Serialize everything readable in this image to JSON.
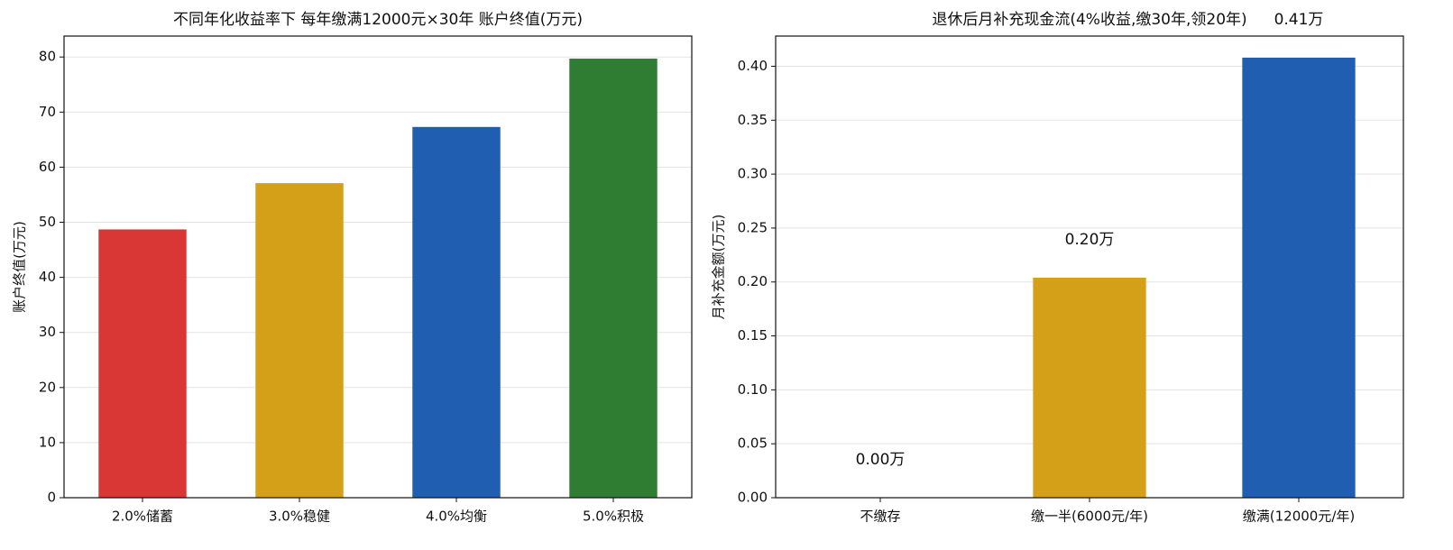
{
  "chart_data": [
    {
      "type": "bar",
      "title": "不同年化收益率下 每年缴满12000元×30年 账户终值(万元)",
      "ylabel": "账户终值(万元)",
      "categories": [
        "2.0%储蓄",
        "3.0%稳健",
        "4.0%均衡",
        "5.0%积极"
      ],
      "values": [
        48.7,
        57.1,
        67.3,
        79.7
      ],
      "colors": [
        "#d93636",
        "#d4a017",
        "#1f5eb0",
        "#2e7d32"
      ],
      "ylim": [
        0,
        83.8
      ],
      "yticks": [
        0,
        10,
        20,
        30,
        40,
        50,
        60,
        70,
        80
      ],
      "grid": true
    },
    {
      "type": "bar",
      "title": "退休后月补充现金流(4%收益,缴30年,领20年)",
      "ylabel": "月补充金额(万元)",
      "categories": [
        "不缴存",
        "缴一半(6000元/年)",
        "缴满(12000元/年)"
      ],
      "values": [
        0,
        0.204,
        0.408
      ],
      "value_labels": [
        "0.00万",
        "0.20万",
        "0.41万"
      ],
      "colors": [
        "#d93636",
        "#d4a017",
        "#1f5eb0"
      ],
      "ylim": [
        0,
        0.428
      ],
      "yticks": [
        {
          "value": 0,
          "label": "0.00"
        },
        {
          "value": 0.05,
          "label": "0.05"
        },
        {
          "value": 0.1,
          "label": "0.10"
        },
        {
          "value": 0.15,
          "label": "0.15"
        },
        {
          "value": 0.2,
          "label": "0.20"
        },
        {
          "value": 0.25,
          "label": "0.25"
        },
        {
          "value": 0.3,
          "label": "0.30"
        },
        {
          "value": 0.35,
          "label": "0.35"
        },
        {
          "value": 0.4,
          "label": "0.40"
        }
      ],
      "grid": true
    }
  ]
}
